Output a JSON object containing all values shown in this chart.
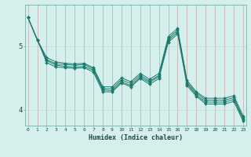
{
  "title": "",
  "xlabel": "Humidex (Indice chaleur)",
  "ylabel": "",
  "bg_color": "#d5f0ec",
  "grid_color": "#b8ddd8",
  "line_color": "#1a7a6e",
  "x_ticks": [
    0,
    1,
    2,
    3,
    4,
    5,
    6,
    7,
    8,
    9,
    10,
    11,
    12,
    13,
    14,
    15,
    16,
    17,
    18,
    19,
    20,
    21,
    22,
    23
  ],
  "y_ticks": [
    4,
    5
  ],
  "ylim": [
    3.75,
    5.65
  ],
  "xlim": [
    -0.3,
    23.3
  ],
  "series": [
    [
      5.45,
      5.1,
      4.82,
      4.75,
      4.73,
      4.72,
      4.73,
      4.66,
      4.36,
      4.36,
      4.5,
      4.44,
      4.57,
      4.48,
      4.57,
      5.15,
      5.28,
      4.46,
      4.28,
      4.18,
      4.18,
      4.18,
      4.22,
      3.9
    ],
    [
      5.45,
      5.1,
      4.79,
      4.72,
      4.71,
      4.7,
      4.71,
      4.64,
      4.33,
      4.33,
      4.47,
      4.41,
      4.54,
      4.45,
      4.54,
      5.12,
      5.25,
      4.43,
      4.26,
      4.15,
      4.15,
      4.15,
      4.19,
      3.87
    ],
    [
      5.45,
      5.1,
      4.77,
      4.7,
      4.68,
      4.67,
      4.68,
      4.62,
      4.31,
      4.3,
      4.44,
      4.38,
      4.51,
      4.43,
      4.52,
      5.09,
      5.22,
      4.41,
      4.23,
      4.12,
      4.12,
      4.12,
      4.16,
      3.85
    ],
    [
      5.45,
      5.1,
      4.74,
      4.67,
      4.66,
      4.65,
      4.66,
      4.59,
      4.28,
      4.28,
      4.42,
      4.36,
      4.49,
      4.4,
      4.49,
      5.06,
      5.19,
      4.38,
      4.21,
      4.09,
      4.09,
      4.09,
      4.13,
      3.82
    ]
  ]
}
